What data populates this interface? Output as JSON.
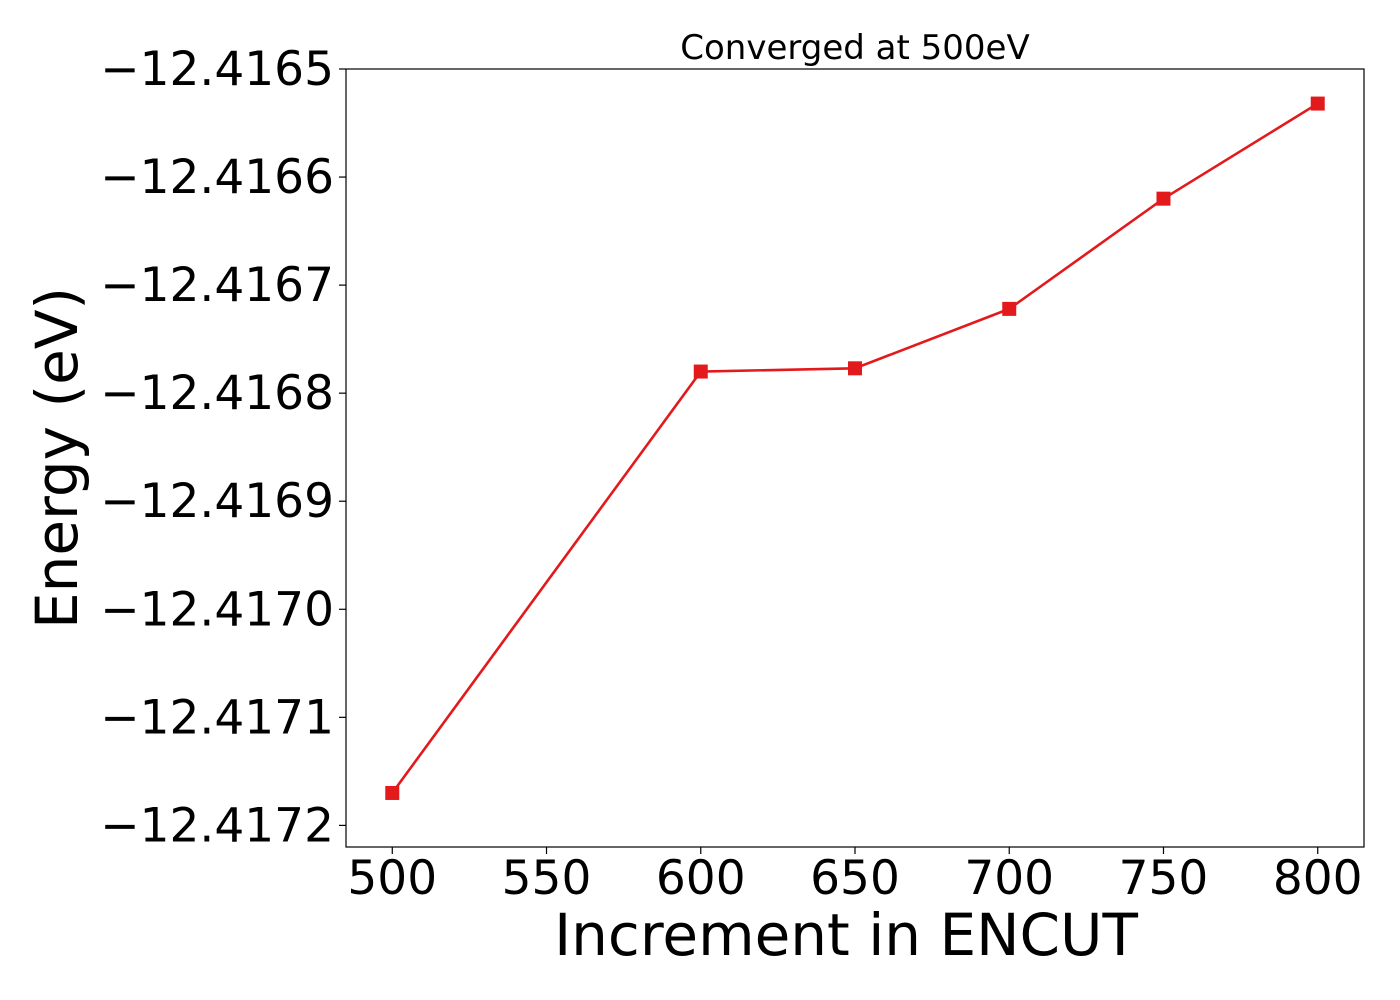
{
  "chart_data": {
    "type": "line",
    "title": "Converged at 500eV",
    "xlabel": "Increment in ENCUT",
    "ylabel": "Energy (eV)",
    "x": [
      500,
      600,
      650,
      700,
      750,
      800
    ],
    "series": [
      {
        "values": [
          -12.41717,
          -12.41678,
          -12.416777,
          -12.416722,
          -12.41662,
          -12.416532
        ],
        "color": "#e31a1c",
        "marker": "square"
      }
    ],
    "xlim": [
      485,
      815
    ],
    "ylim": [
      -12.41722,
      -12.4165
    ],
    "xticks": [
      500,
      550,
      600,
      650,
      700,
      750,
      800
    ],
    "xtick_labels": [
      "500",
      "550",
      "600",
      "650",
      "700",
      "750",
      "800"
    ],
    "yticks": [
      -12.4172,
      -12.4171,
      -12.417,
      -12.4169,
      -12.4168,
      -12.4167,
      -12.4166,
      -12.4165
    ],
    "ytick_labels": [
      "−12.4172",
      "−12.4171",
      "−12.4170",
      "−12.4169",
      "−12.4168",
      "−12.4167",
      "−12.4166",
      "−12.4165"
    ],
    "grid": false,
    "legend": "none"
  }
}
